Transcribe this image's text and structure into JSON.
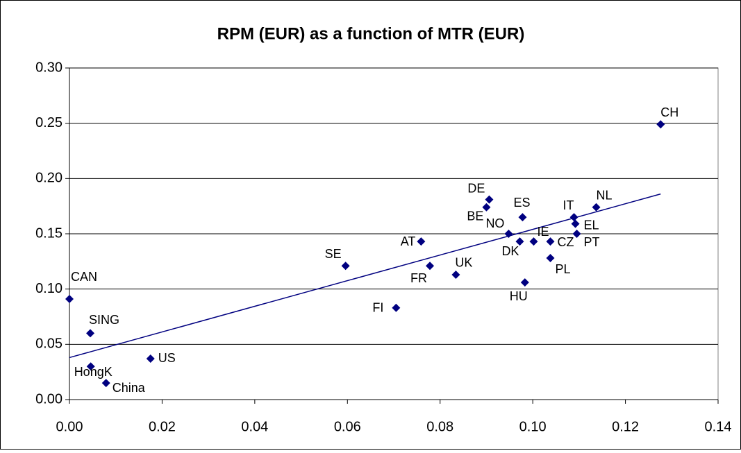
{
  "chart_data": {
    "type": "scatter",
    "title": "RPM (EUR) as a function of MTR (EUR)",
    "labels": [
      "CAN",
      "SING",
      "HongK",
      "China",
      "US",
      "SE",
      "FI",
      "AT",
      "FR",
      "UK",
      "DE",
      "BE",
      "ES",
      "NO",
      "DK",
      "IE",
      "HU",
      "CZ",
      "PL",
      "IT",
      "EL",
      "PT",
      "NL",
      "CH"
    ],
    "x": [
      0.0,
      0.0045,
      0.0046,
      0.0079,
      0.0175,
      0.0596,
      0.0705,
      0.0759,
      0.0778,
      0.0834,
      0.0906,
      0.09,
      0.0978,
      0.0948,
      0.0972,
      0.1002,
      0.0983,
      0.1038,
      0.1038,
      0.1089,
      0.1092,
      0.1095,
      0.1137,
      0.1276
    ],
    "values": [
      0.091,
      0.06,
      0.03,
      0.015,
      0.037,
      0.121,
      0.083,
      0.143,
      0.121,
      0.113,
      0.181,
      0.174,
      0.165,
      0.15,
      0.143,
      0.143,
      0.106,
      0.143,
      0.128,
      0.165,
      0.159,
      0.15,
      0.174,
      0.249
    ],
    "color": "#000080",
    "trendline": {
      "x": [
        0.0,
        0.1276
      ],
      "y": [
        0.038,
        0.186
      ],
      "color": "#000080"
    },
    "xlim": [
      0,
      0.14
    ],
    "xticks": [
      {
        "value": 0,
        "label": "0.00"
      },
      {
        "value": 0.02,
        "label": "0.02"
      },
      {
        "value": 0.04,
        "label": "0.04"
      },
      {
        "value": 0.06,
        "label": "0.06"
      },
      {
        "value": 0.08,
        "label": "0.08"
      },
      {
        "value": 0.1,
        "label": "0.10"
      },
      {
        "value": 0.12,
        "label": "0.12"
      },
      {
        "value": 0.14,
        "label": "0.14"
      }
    ],
    "ylim": [
      0,
      0.3
    ],
    "yticks": [
      {
        "value": 0,
        "label": "0.00"
      },
      {
        "value": 0.05,
        "label": "0.05"
      },
      {
        "value": 0.1,
        "label": "0.10"
      },
      {
        "value": 0.15,
        "label": "0.15"
      },
      {
        "value": 0.2,
        "label": "0.20"
      },
      {
        "value": 0.25,
        "label": "0.25"
      },
      {
        "value": 0.3,
        "label": "0.30"
      }
    ],
    "grid": true
  }
}
